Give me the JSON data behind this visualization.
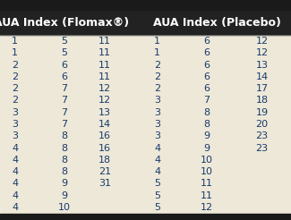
{
  "header1": "AUA Index (Flomax®)",
  "header2": "AUA Index (Placebo)",
  "flomax_col1": [
    1,
    1,
    2,
    2,
    2,
    2,
    3,
    3,
    3,
    4,
    4,
    4,
    4,
    4,
    4
  ],
  "flomax_col2": [
    5,
    5,
    6,
    6,
    7,
    7,
    7,
    7,
    8,
    8,
    8,
    8,
    9,
    9,
    10
  ],
  "flomax_col3": [
    11,
    11,
    11,
    11,
    12,
    12,
    13,
    14,
    16,
    16,
    18,
    21,
    31,
    "",
    ""
  ],
  "placebo_col1": [
    1,
    1,
    2,
    2,
    2,
    3,
    3,
    3,
    3,
    4,
    4,
    4,
    5,
    5,
    5
  ],
  "placebo_col2": [
    6,
    6,
    6,
    6,
    6,
    7,
    8,
    8,
    9,
    9,
    10,
    10,
    11,
    11,
    12
  ],
  "placebo_col3": [
    12,
    12,
    13,
    14,
    17,
    18,
    19,
    20,
    23,
    23,
    "",
    "",
    "",
    "",
    ""
  ],
  "bg_color": "#ede8d8",
  "header_bg": "#1a1a1a",
  "header_text_color": "#ffffff",
  "data_text_color": "#1a3a6b",
  "font_size": 8.0,
  "header_font_size": 9.0
}
